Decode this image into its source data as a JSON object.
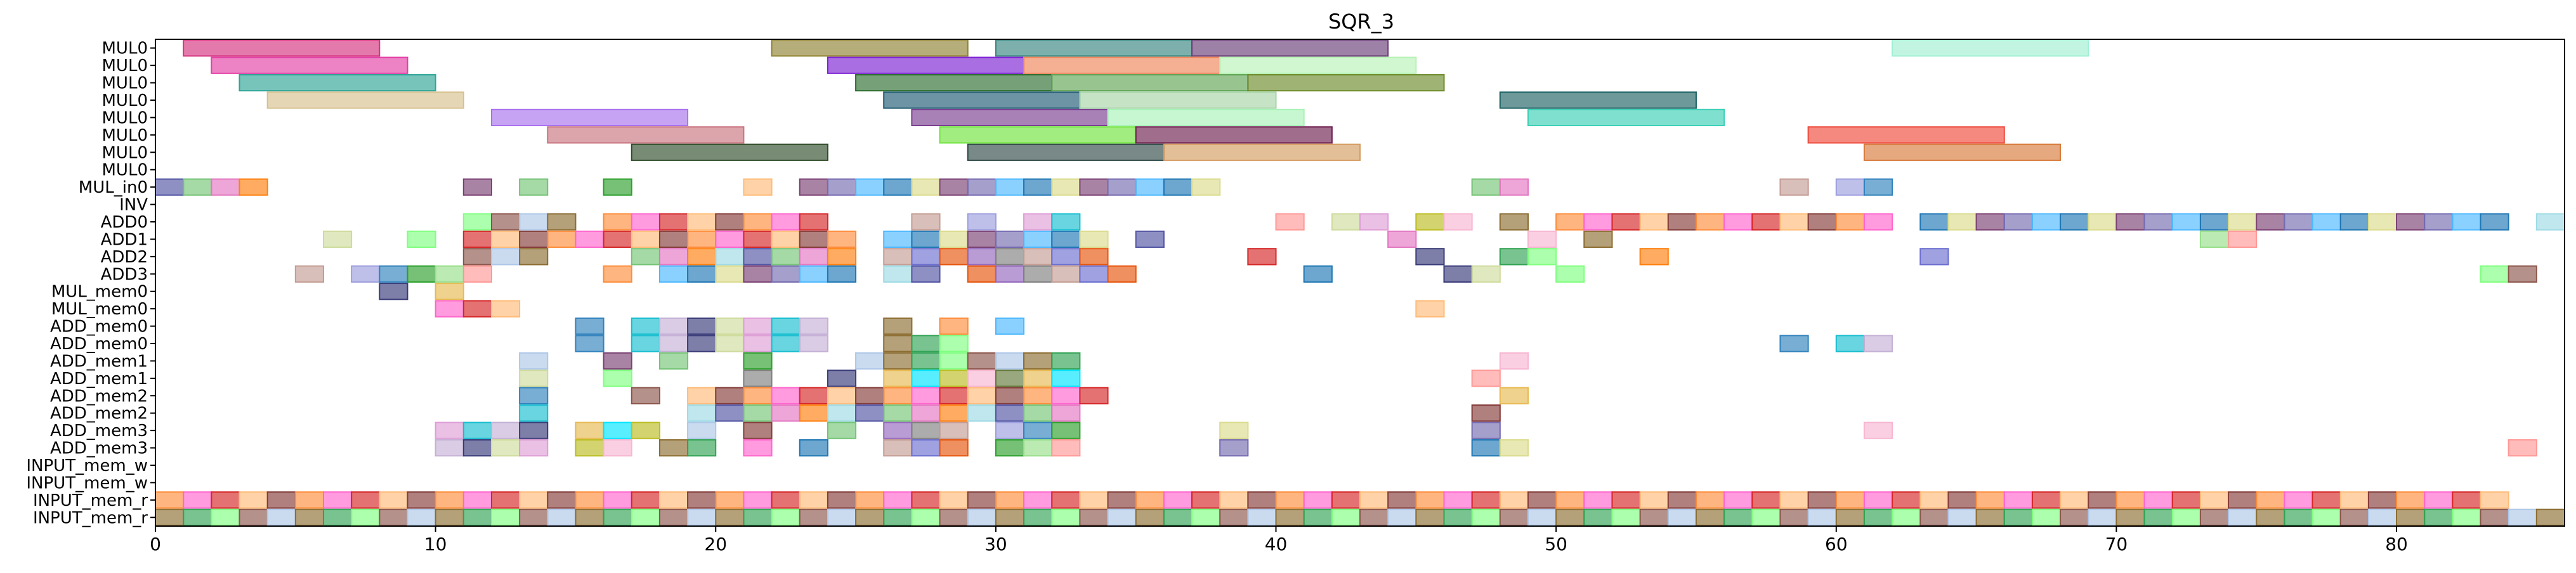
{
  "chart_data": {
    "type": "gantt",
    "title": "SQR_3",
    "xlim": [
      0,
      86
    ],
    "x_ticks": [
      0,
      10,
      20,
      30,
      40,
      50,
      60,
      70,
      80
    ],
    "rows": [
      "MUL0",
      "MUL0",
      "MUL0",
      "MUL0",
      "MUL0",
      "MUL0",
      "MUL0",
      "MUL0",
      "MUL_in0",
      "INV",
      "ADD0",
      "ADD1",
      "ADD2",
      "ADD3",
      "MUL_mem0",
      "MUL_mem0",
      "ADD_mem0",
      "ADD_mem0",
      "ADD_mem1",
      "ADD_mem1",
      "ADD_mem2",
      "ADD_mem2",
      "ADD_mem3",
      "ADD_mem3",
      "INPUT_mem_w",
      "INPUT_mem_w",
      "INPUT_mem_r",
      "INPUT_mem_r"
    ],
    "long_tasks": [
      {
        "row": 0,
        "start": 1,
        "end": 8,
        "color": "#d6337f"
      },
      {
        "row": 0,
        "start": 22,
        "end": 29,
        "color": "#8f8233"
      },
      {
        "row": 0,
        "start": 30,
        "end": 37,
        "color": "#37857f"
      },
      {
        "row": 0,
        "start": 37,
        "end": 44,
        "color": "#6a3e76"
      },
      {
        "row": 0,
        "start": 62,
        "end": 69,
        "color": "#9ff0d2"
      },
      {
        "row": 1,
        "start": 2,
        "end": 9,
        "color": "#e33fa5"
      },
      {
        "row": 1,
        "start": 24,
        "end": 31,
        "color": "#7c20d4"
      },
      {
        "row": 1,
        "start": 31,
        "end": 38,
        "color": "#f0855a"
      },
      {
        "row": 1,
        "start": 38,
        "end": 45,
        "color": "#b7f2b6"
      },
      {
        "row": 2,
        "start": 3,
        "end": 10,
        "color": "#2ea497"
      },
      {
        "row": 2,
        "start": 25,
        "end": 32,
        "color": "#2c6e2f"
      },
      {
        "row": 2,
        "start": 32,
        "end": 39,
        "color": "#61a455"
      },
      {
        "row": 2,
        "start": 39,
        "end": 46,
        "color": "#6c8c2a"
      },
      {
        "row": 3,
        "start": 4,
        "end": 11,
        "color": "#d7c08f"
      },
      {
        "row": 3,
        "start": 26,
        "end": 33,
        "color": "#1e5a73"
      },
      {
        "row": 3,
        "start": 33,
        "end": 40,
        "color": "#a7d4a7"
      },
      {
        "row": 3,
        "start": 48,
        "end": 55,
        "color": "#1e6264"
      },
      {
        "row": 4,
        "start": 12,
        "end": 19,
        "color": "#a971ee"
      },
      {
        "row": 4,
        "start": 27,
        "end": 34,
        "color": "#7a3e8f"
      },
      {
        "row": 4,
        "start": 34,
        "end": 41,
        "color": "#a8f2b7"
      },
      {
        "row": 4,
        "start": 49,
        "end": 56,
        "color": "#3ccfb6"
      },
      {
        "row": 5,
        "start": 14,
        "end": 21,
        "color": "#c9747f"
      },
      {
        "row": 5,
        "start": 28,
        "end": 35,
        "color": "#6fe33c"
      },
      {
        "row": 5,
        "start": 35,
        "end": 42,
        "color": "#6e1f4f"
      },
      {
        "row": 5,
        "start": 59,
        "end": 66,
        "color": "#ef4a3c"
      },
      {
        "row": 6,
        "start": 17,
        "end": 24,
        "color": "#304d2a"
      },
      {
        "row": 6,
        "start": 29,
        "end": 36,
        "color": "#2f4a46"
      },
      {
        "row": 6,
        "start": 36,
        "end": 43,
        "color": "#d49d61"
      },
      {
        "row": 6,
        "start": 61,
        "end": 68,
        "color": "#d77a3a"
      }
    ],
    "unit_tasks": {
      "8": [
        0,
        1,
        2,
        3,
        11,
        13,
        16,
        21,
        23,
        24,
        25,
        26,
        27,
        28,
        29,
        30,
        31,
        32,
        33,
        34,
        35,
        36,
        37,
        47,
        48,
        58,
        60,
        61
      ],
      "10": [
        11,
        12,
        13,
        14,
        16,
        17,
        18,
        19,
        20,
        21,
        22,
        23,
        27,
        29,
        31,
        32,
        40,
        42,
        43,
        45,
        46,
        48,
        50,
        51,
        52,
        53,
        54,
        55,
        56,
        57,
        58,
        59,
        60,
        61,
        63,
        64,
        65,
        66,
        67,
        68,
        69,
        70,
        71,
        72,
        73,
        74,
        75,
        76,
        77,
        78,
        79,
        80,
        81,
        82,
        83,
        85
      ],
      "11": [
        6,
        9,
        11,
        12,
        13,
        14,
        15,
        16,
        17,
        18,
        19,
        20,
        21,
        22,
        23,
        24,
        26,
        27,
        28,
        29,
        30,
        31,
        32,
        33,
        35,
        44,
        49,
        51,
        73,
        74
      ],
      "12": [
        11,
        12,
        13,
        17,
        18,
        19,
        20,
        21,
        22,
        23,
        24,
        26,
        27,
        28,
        29,
        30,
        31,
        32,
        33,
        39,
        45,
        48,
        49,
        53,
        63
      ],
      "13": [
        5,
        7,
        8,
        9,
        10,
        11,
        16,
        18,
        19,
        20,
        21,
        22,
        23,
        24,
        26,
        27,
        29,
        30,
        31,
        32,
        33,
        34,
        41,
        46,
        47,
        50,
        83,
        84
      ],
      "14": [
        8,
        10
      ],
      "15": [
        10,
        11,
        12,
        45
      ],
      "16": [
        15,
        17,
        18,
        19,
        20,
        21,
        22,
        23,
        26,
        28,
        30
      ],
      "17": [
        15,
        17,
        18,
        19,
        20,
        21,
        22,
        23,
        26,
        27,
        28,
        58,
        60,
        61
      ],
      "18": [
        13,
        16,
        18,
        21,
        25,
        26,
        27,
        28,
        29,
        30,
        31,
        32,
        48
      ],
      "19": [
        13,
        16,
        21,
        24,
        26,
        27,
        28,
        29,
        30,
        31,
        32,
        47
      ],
      "20": [
        13,
        17,
        19,
        20,
        21,
        22,
        23,
        24,
        25,
        26,
        27,
        28,
        29,
        30,
        31,
        32,
        33,
        48
      ],
      "21": [
        13,
        19,
        20,
        21,
        22,
        23,
        24,
        25,
        26,
        27,
        28,
        29,
        30,
        31,
        32,
        47
      ],
      "22": [
        10,
        11,
        12,
        13,
        15,
        16,
        17,
        19,
        21,
        24,
        26,
        27,
        28,
        30,
        31,
        32,
        38,
        47,
        61
      ],
      "23": [
        10,
        11,
        12,
        13,
        15,
        16,
        18,
        19,
        21,
        23,
        26,
        27,
        28,
        30,
        31,
        32,
        38,
        47,
        48,
        84
      ],
      "26": [
        0,
        1,
        2,
        3,
        4,
        5,
        6,
        7,
        8,
        9,
        10,
        11,
        12,
        13,
        14,
        15,
        16,
        17,
        18,
        19,
        20,
        21,
        22,
        23,
        24,
        25,
        26,
        27,
        28,
        29,
        30,
        31,
        32,
        33,
        34,
        35,
        36,
        37,
        38,
        39,
        40,
        41,
        42,
        43,
        44,
        45,
        46,
        47,
        48,
        49,
        50,
        51,
        52,
        53,
        54,
        55,
        56,
        57,
        58,
        59,
        60,
        61,
        62,
        63,
        64,
        65,
        66,
        67,
        68,
        69,
        70,
        71,
        72,
        73,
        74,
        75,
        76,
        77,
        78,
        79,
        80,
        81,
        82,
        83
      ],
      "27": [
        0,
        1,
        2,
        3,
        4,
        5,
        6,
        7,
        8,
        9,
        10,
        11,
        12,
        13,
        14,
        15,
        16,
        17,
        18,
        19,
        20,
        21,
        22,
        23,
        24,
        25,
        26,
        27,
        28,
        29,
        30,
        31,
        32,
        33,
        34,
        35,
        36,
        37,
        38,
        39,
        40,
        41,
        42,
        43,
        44,
        45,
        46,
        47,
        48,
        49,
        50,
        51,
        52,
        53,
        54,
        55,
        56,
        57,
        58,
        59,
        60,
        61,
        62,
        63,
        64,
        65,
        66,
        67,
        68,
        69,
        70,
        71,
        72,
        73,
        74,
        75,
        76,
        77,
        78,
        79,
        80,
        81,
        82,
        83,
        84,
        85
      ]
    },
    "palette": [
      "#e377c2",
      "#9467bd",
      "#2ca02c",
      "#17becf",
      "#bcbd22",
      "#8c564b",
      "#d62728",
      "#1f77b4",
      "#ff7f0e",
      "#7f7f7f",
      "#98df8a",
      "#c5b0d5",
      "#f7b6d2",
      "#aec7e8",
      "#ffbb78",
      "#dbdb8d",
      "#9edae5",
      "#c49c94",
      "#ff9896",
      "#393b79",
      "#637939",
      "#8c6d31",
      "#843c39",
      "#7b4173",
      "#5254a3",
      "#6b6ecf",
      "#9c9ede",
      "#cedb9c",
      "#e7ba52",
      "#31a354",
      "#fd8d3c",
      "#756bb1",
      "#74c476",
      "#e6550d",
      "#3182bd",
      "#de9ed6",
      "#00e5ff",
      "#7fff7f",
      "#ff66cc",
      "#4db8ff"
    ],
    "grid": false,
    "legend": "none"
  }
}
